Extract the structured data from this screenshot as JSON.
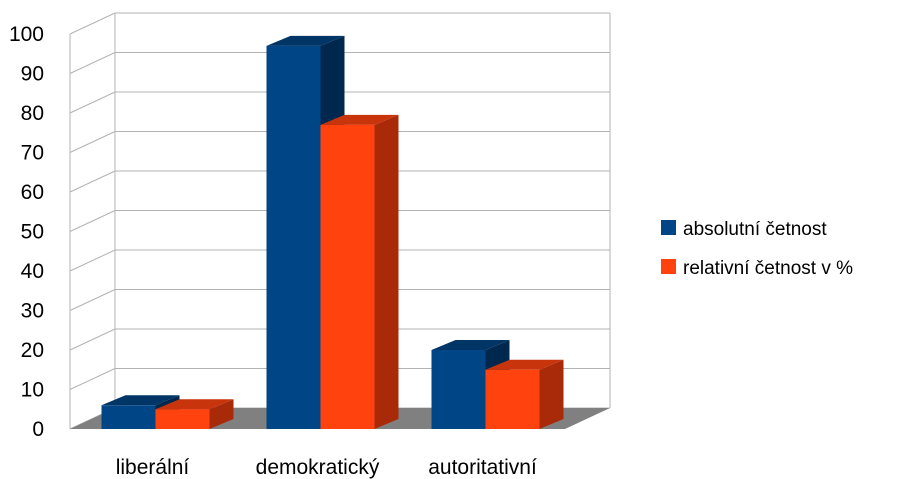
{
  "chart_data": {
    "type": "bar",
    "title": "",
    "xlabel": "",
    "ylabel": "",
    "categories": [
      "liberální",
      "demokratický",
      "autoritativní"
    ],
    "series": [
      {
        "name": "absolutní četnost",
        "values": [
          6,
          97,
          20
        ],
        "color": "#004586",
        "side_color": "#00284e",
        "top_color": "#003566"
      },
      {
        "name": "relativní četnost v %",
        "values": [
          5,
          77,
          15
        ],
        "color": "#ff420e",
        "side_color": "#a82a09",
        "top_color": "#c8340b"
      }
    ],
    "ylim": [
      0,
      100
    ],
    "yticks": [
      0,
      10,
      20,
      30,
      40,
      50,
      60,
      70,
      80,
      90,
      100
    ],
    "grid": true,
    "legend_position": "right",
    "style": "3d",
    "floor_color": "#808080"
  }
}
